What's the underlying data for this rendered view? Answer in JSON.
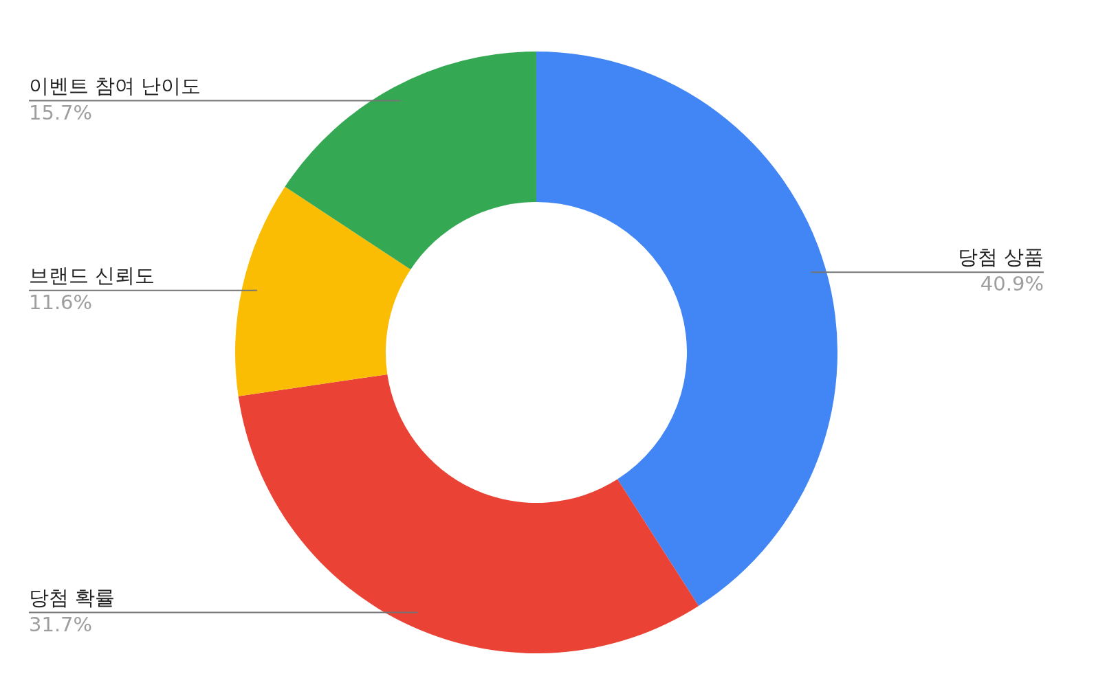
{
  "chart_data": {
    "type": "donut",
    "categories": [
      "당첨 상품",
      "당첨 확률",
      "브랜드 신뢰도",
      "이벤트 참여 난이도"
    ],
    "values": [
      40.9,
      31.7,
      11.6,
      15.7
    ],
    "colors": [
      "#4285f4",
      "#ea4335",
      "#fbbc04",
      "#34a853"
    ],
    "value_labels": [
      "40.9%",
      "31.7%",
      "11.6%",
      "15.7%"
    ]
  }
}
